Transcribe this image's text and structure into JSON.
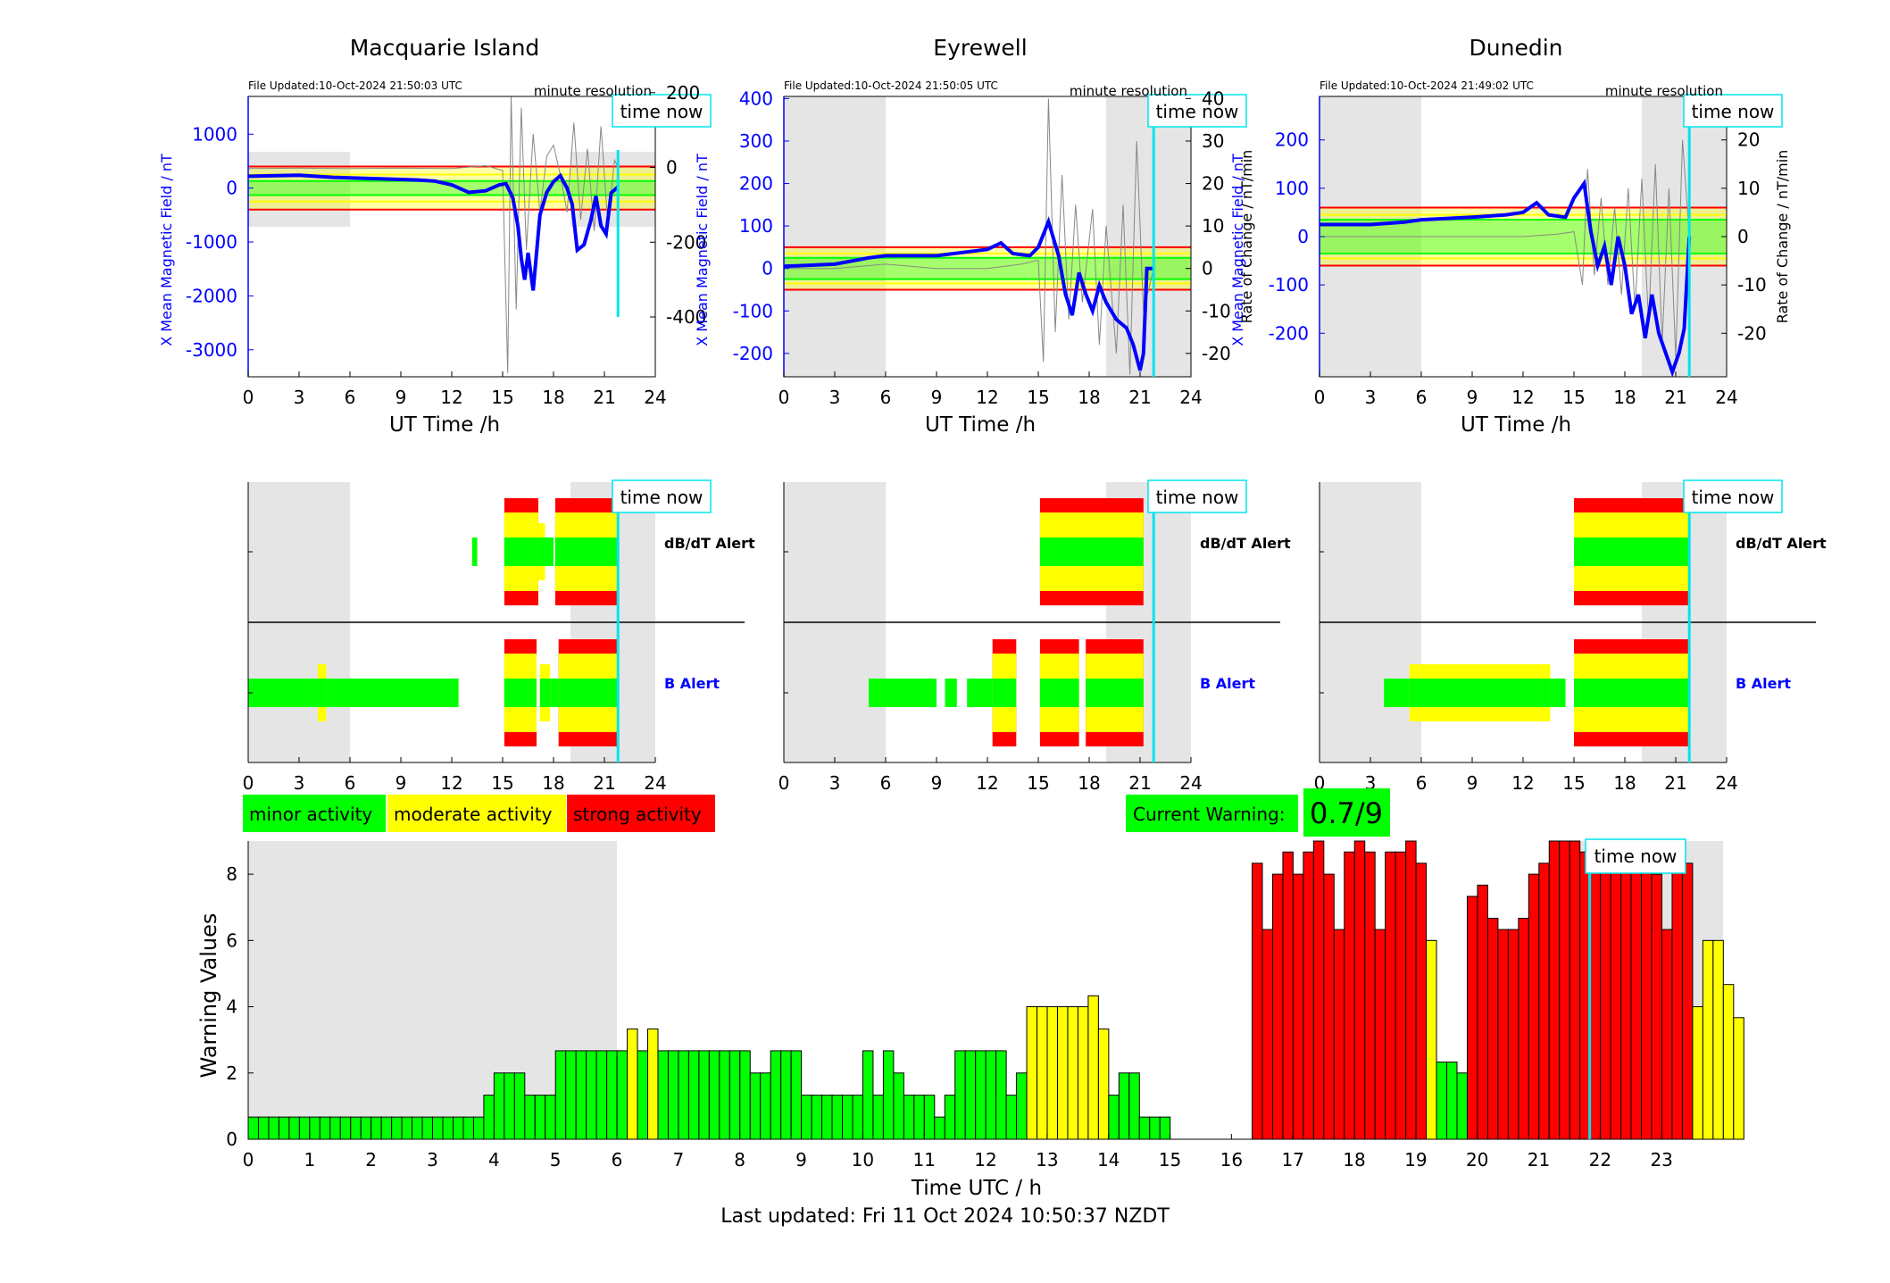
{
  "footer_text": "Last updated: Fri 11 Oct 2024 10:50:37 NZDT",
  "colors": {
    "minor": "#00ff00",
    "moderate": "#ffff00",
    "strong": "#ff0000",
    "field": "#0000ff",
    "time_now": "#00e5ee",
    "night": "#e5e5e5"
  },
  "legend": [
    {
      "label": "minor activity",
      "color": "#00ff00"
    },
    {
      "label": "moderate activity",
      "color": "#ffff00"
    },
    {
      "label": "strong activity",
      "color": "#ff0000"
    }
  ],
  "current_warning": {
    "label": "Current Warning:",
    "value": "0.7/9"
  },
  "time_now_label": "time now",
  "stations": [
    {
      "name": "Macquarie Island",
      "file_updated": "File Updated:10-Oct-2024 21:50:03 UTC",
      "resolution": "minute resolution",
      "ylabel_left": "X Mean Magnetic Field / nT",
      "ylabel_right": "",
      "ylim_left": [
        -3500,
        1700
      ],
      "yticks_left": [
        1000,
        0,
        -1000,
        -2000,
        -3000
      ],
      "ylim_right": [
        -560,
        190
      ],
      "yticks_right": [
        200,
        0,
        -200,
        -400
      ],
      "xlabel": "UT Time /h",
      "xticks": [
        0,
        3,
        6,
        9,
        12,
        15,
        18,
        21,
        24
      ],
      "thresholds": {
        "red": 400,
        "yellow": 250,
        "green": 130
      },
      "night_bands": [
        [
          0,
          6
        ],
        [
          19,
          24
        ]
      ],
      "time_now_h": 21.8,
      "field_trace": [
        [
          0,
          220
        ],
        [
          3,
          240
        ],
        [
          5,
          200
        ],
        [
          6,
          190
        ],
        [
          8,
          170
        ],
        [
          10,
          150
        ],
        [
          11,
          130
        ],
        [
          12,
          60
        ],
        [
          13,
          -80
        ],
        [
          14,
          -50
        ],
        [
          14.8,
          60
        ],
        [
          15.2,
          80
        ],
        [
          15.6,
          -180
        ],
        [
          15.9,
          -700
        ],
        [
          16.1,
          -1300
        ],
        [
          16.3,
          -1700
        ],
        [
          16.5,
          -1200
        ],
        [
          16.8,
          -1900
        ],
        [
          17.2,
          -500
        ],
        [
          17.6,
          -80
        ],
        [
          18,
          120
        ],
        [
          18.4,
          230
        ],
        [
          18.8,
          0
        ],
        [
          19.1,
          -300
        ],
        [
          19.4,
          -1150
        ],
        [
          19.8,
          -1050
        ],
        [
          20.2,
          -600
        ],
        [
          20.5,
          -150
        ],
        [
          20.8,
          -700
        ],
        [
          21.1,
          -850
        ],
        [
          21.4,
          -90
        ],
        [
          21.8,
          20
        ]
      ],
      "rate_trace": [
        [
          0,
          -3
        ],
        [
          3,
          -2
        ],
        [
          6,
          -3
        ],
        [
          9,
          -2
        ],
        [
          12,
          -3
        ],
        [
          14,
          5
        ],
        [
          15,
          -8
        ],
        [
          15.3,
          -550
        ],
        [
          15.5,
          190
        ],
        [
          15.8,
          -380
        ],
        [
          16.1,
          160
        ],
        [
          16.4,
          -220
        ],
        [
          16.8,
          90
        ],
        [
          17.2,
          -120
        ],
        [
          17.6,
          30
        ],
        [
          18,
          60
        ],
        [
          18.4,
          -20
        ],
        [
          18.8,
          -120
        ],
        [
          19.2,
          120
        ],
        [
          19.6,
          -140
        ],
        [
          20,
          50
        ],
        [
          20.4,
          -170
        ],
        [
          20.8,
          110
        ],
        [
          21.2,
          -150
        ],
        [
          21.6,
          20
        ],
        [
          21.8,
          0
        ]
      ],
      "db_alert": [
        [
          13.2,
          13.5,
          "minor"
        ],
        [
          15.1,
          17.1,
          "strong"
        ],
        [
          17.1,
          17.5,
          "moderate"
        ],
        [
          17.5,
          18.0,
          "minor"
        ],
        [
          18.1,
          21.8,
          "strong"
        ]
      ],
      "b_alert": [
        [
          0,
          12.0,
          "minor"
        ],
        [
          4.1,
          4.6,
          "moderate"
        ],
        [
          12.0,
          12.4,
          "minor"
        ],
        [
          15.1,
          17.0,
          "strong"
        ],
        [
          17.2,
          17.8,
          "moderate"
        ],
        [
          17.8,
          18.3,
          "minor"
        ],
        [
          18.3,
          21.8,
          "strong"
        ]
      ]
    },
    {
      "name": "Eyrewell",
      "file_updated": "File Updated:10-Oct-2024 21:50:05 UTC",
      "resolution": "minute resolution",
      "ylabel_left": "X Mean Magnetic Field / nT",
      "ylabel_right": "Rate of Change / nT/min",
      "ylim_left": [
        -255,
        405
      ],
      "yticks_left": [
        400,
        300,
        200,
        100,
        0,
        -100,
        -200
      ],
      "ylim_right": [
        -25.5,
        40.5
      ],
      "yticks_right": [
        40,
        30,
        20,
        10,
        0,
        -10,
        -20
      ],
      "xlabel": "UT Time /h",
      "xticks": [
        0,
        3,
        6,
        9,
        12,
        15,
        18,
        21,
        24
      ],
      "thresholds": {
        "red": 50,
        "yellow": 35,
        "green": 25
      },
      "night_bands": [
        [
          0,
          6
        ],
        [
          19,
          24
        ]
      ],
      "time_now_h": 21.8,
      "field_trace": [
        [
          0,
          5
        ],
        [
          3,
          10
        ],
        [
          5,
          25
        ],
        [
          6,
          30
        ],
        [
          9,
          30
        ],
        [
          11,
          40
        ],
        [
          12,
          45
        ],
        [
          12.8,
          60
        ],
        [
          13.5,
          35
        ],
        [
          14.5,
          30
        ],
        [
          15,
          50
        ],
        [
          15.6,
          110
        ],
        [
          16.2,
          30
        ],
        [
          16.6,
          -60
        ],
        [
          17,
          -110
        ],
        [
          17.4,
          -10
        ],
        [
          17.8,
          -60
        ],
        [
          18.2,
          -100
        ],
        [
          18.6,
          -40
        ],
        [
          19,
          -80
        ],
        [
          19.6,
          -120
        ],
        [
          20.2,
          -140
        ],
        [
          20.6,
          -180
        ],
        [
          21,
          -240
        ],
        [
          21.2,
          -200
        ],
        [
          21.4,
          0
        ],
        [
          21.8,
          0
        ]
      ],
      "rate_trace": [
        [
          0,
          0
        ],
        [
          3,
          0
        ],
        [
          6,
          1
        ],
        [
          9,
          0
        ],
        [
          12,
          0
        ],
        [
          14,
          1
        ],
        [
          15,
          2
        ],
        [
          15.3,
          -22
        ],
        [
          15.6,
          40
        ],
        [
          16,
          -15
        ],
        [
          16.4,
          22
        ],
        [
          16.8,
          -12
        ],
        [
          17.2,
          15
        ],
        [
          17.6,
          -8
        ],
        [
          18.2,
          14
        ],
        [
          18.6,
          -18
        ],
        [
          19,
          10
        ],
        [
          19.6,
          -20
        ],
        [
          20,
          15
        ],
        [
          20.4,
          -25
        ],
        [
          20.8,
          30
        ],
        [
          21.2,
          -10
        ],
        [
          21.8,
          0
        ]
      ],
      "db_alert": [
        [
          15.1,
          21.2,
          "strong"
        ]
      ],
      "b_alert": [
        [
          5,
          9,
          "minor"
        ],
        [
          9.5,
          10.2,
          "minor"
        ],
        [
          10.8,
          12.3,
          "minor"
        ],
        [
          12.3,
          13.7,
          "strong"
        ],
        [
          15.1,
          17.4,
          "strong"
        ],
        [
          17.8,
          21.2,
          "strong"
        ]
      ]
    },
    {
      "name": "Dunedin",
      "file_updated": "File Updated:10-Oct-2024 21:49:02 UTC",
      "resolution": "minute resolution",
      "ylabel_left": "X Mean Magnetic Field / nT",
      "ylabel_right": "Rate of Change / nT/min",
      "ylim_left": [
        -290,
        290
      ],
      "yticks_left": [
        200,
        100,
        0,
        -100,
        -200
      ],
      "ylim_right": [
        -29,
        29
      ],
      "yticks_right": [
        20,
        10,
        0,
        -10,
        -20
      ],
      "xlabel": "UT Time /h",
      "xticks": [
        0,
        3,
        6,
        9,
        12,
        15,
        18,
        21,
        24
      ],
      "thresholds": {
        "red": 60,
        "yellow": 45,
        "green": 35
      },
      "night_bands": [
        [
          0,
          6
        ],
        [
          19,
          24
        ]
      ],
      "time_now_h": 21.8,
      "field_trace": [
        [
          0,
          25
        ],
        [
          3,
          25
        ],
        [
          5,
          30
        ],
        [
          6,
          35
        ],
        [
          9,
          40
        ],
        [
          11,
          45
        ],
        [
          12,
          50
        ],
        [
          12.8,
          70
        ],
        [
          13.5,
          45
        ],
        [
          14.5,
          40
        ],
        [
          15,
          80
        ],
        [
          15.6,
          110
        ],
        [
          16,
          10
        ],
        [
          16.4,
          -60
        ],
        [
          16.8,
          -20
        ],
        [
          17.2,
          -100
        ],
        [
          17.6,
          0
        ],
        [
          18,
          -60
        ],
        [
          18.4,
          -160
        ],
        [
          18.8,
          -120
        ],
        [
          19.2,
          -210
        ],
        [
          19.6,
          -120
        ],
        [
          20,
          -200
        ],
        [
          20.4,
          -240
        ],
        [
          20.8,
          -280
        ],
        [
          21.2,
          -240
        ],
        [
          21.5,
          -190
        ],
        [
          21.8,
          0
        ]
      ],
      "rate_trace": [
        [
          0,
          0
        ],
        [
          3,
          0
        ],
        [
          6,
          0
        ],
        [
          9,
          0
        ],
        [
          12,
          0
        ],
        [
          14,
          0.5
        ],
        [
          15,
          1
        ],
        [
          15.5,
          -10
        ],
        [
          15.8,
          14
        ],
        [
          16.2,
          -8
        ],
        [
          16.6,
          8
        ],
        [
          17,
          -10
        ],
        [
          17.4,
          6
        ],
        [
          17.8,
          -12
        ],
        [
          18.2,
          10
        ],
        [
          18.6,
          -15
        ],
        [
          19,
          12
        ],
        [
          19.4,
          -18
        ],
        [
          19.8,
          15
        ],
        [
          20.2,
          -22
        ],
        [
          20.6,
          10
        ],
        [
          21,
          -25
        ],
        [
          21.4,
          20
        ],
        [
          21.8,
          0
        ]
      ],
      "db_alert": [
        [
          15.0,
          21.8,
          "strong"
        ]
      ],
      "b_alert": [
        [
          3.8,
          14.5,
          "minor"
        ],
        [
          5.3,
          13.6,
          "moderate"
        ],
        [
          15.0,
          21.8,
          "strong"
        ]
      ]
    }
  ],
  "b_alert_label": "B Alert",
  "db_alert_label": "dB/dT Alert",
  "chart_data": {
    "type": "bar",
    "title": "",
    "xlabel": "Time UTC / h",
    "ylabel": "Warning Values",
    "xlim": [
      0,
      24
    ],
    "ylim": [
      0,
      9
    ],
    "xticks": [
      0,
      1,
      2,
      3,
      4,
      5,
      6,
      7,
      8,
      9,
      10,
      11,
      12,
      13,
      14,
      15,
      16,
      17,
      18,
      19,
      20,
      21,
      22,
      23
    ],
    "yticks": [
      0,
      2,
      4,
      6,
      8
    ],
    "bar_width_h": 0.1667,
    "night_bands": [
      [
        0,
        6
      ],
      [
        21.5,
        24
      ]
    ],
    "time_now_h": 21.83,
    "values": [
      0.67,
      0.67,
      0.67,
      0.67,
      0.67,
      0.67,
      0.67,
      0.67,
      0.67,
      0.67,
      0.67,
      0.67,
      0.67,
      0.67,
      0.67,
      0.67,
      0.67,
      0.67,
      0.67,
      0.67,
      0.67,
      0.67,
      0.67,
      1.33,
      2,
      2,
      2,
      1.33,
      1.33,
      1.33,
      2.67,
      2.67,
      2.67,
      2.67,
      2.67,
      2.67,
      2.67,
      3.33,
      2.67,
      3.33,
      2.67,
      2.67,
      2.67,
      2.67,
      2.67,
      2.67,
      2.67,
      2.67,
      2.67,
      2,
      2,
      2.67,
      2.67,
      2.67,
      1.33,
      1.33,
      1.33,
      1.33,
      1.33,
      1.33,
      2.67,
      1.33,
      2.67,
      2,
      1.33,
      1.33,
      1.33,
      0.67,
      1.33,
      2.67,
      2.67,
      2.67,
      2.67,
      2.67,
      1.33,
      2,
      4,
      4,
      4,
      4,
      4,
      4,
      4.33,
      3.33,
      1.33,
      2,
      2,
      0.67,
      0.67,
      0.67,
      0,
      0,
      0,
      0,
      0,
      0,
      0,
      0,
      8.33,
      6.33,
      8,
      8.67,
      8,
      8.67,
      9,
      8,
      6.33,
      8.67,
      9,
      8.67,
      6.33,
      8.67,
      8.67,
      9,
      8.33,
      6,
      2.33,
      2.33,
      2,
      7.33,
      7.67,
      6.67,
      6.33,
      6.33,
      6.67,
      8,
      8.33,
      9,
      9,
      9,
      8.67,
      9,
      9,
      8.67,
      9,
      9,
      9,
      8,
      6.33,
      8.33,
      8.33,
      4,
      6,
      6,
      4.67,
      3.67
    ],
    "levels": [
      "minor",
      "minor",
      "minor",
      "minor",
      "minor",
      "minor",
      "minor",
      "minor",
      "minor",
      "minor",
      "minor",
      "minor",
      "minor",
      "minor",
      "minor",
      "minor",
      "minor",
      "minor",
      "minor",
      "minor",
      "minor",
      "minor",
      "minor",
      "minor",
      "minor",
      "minor",
      "minor",
      "minor",
      "minor",
      "minor",
      "minor",
      "minor",
      "minor",
      "minor",
      "minor",
      "minor",
      "minor",
      "moderate",
      "minor",
      "moderate",
      "minor",
      "minor",
      "minor",
      "minor",
      "minor",
      "minor",
      "minor",
      "minor",
      "minor",
      "minor",
      "minor",
      "minor",
      "minor",
      "minor",
      "minor",
      "minor",
      "minor",
      "minor",
      "minor",
      "minor",
      "minor",
      "minor",
      "minor",
      "minor",
      "minor",
      "minor",
      "minor",
      "minor",
      "minor",
      "minor",
      "minor",
      "minor",
      "minor",
      "minor",
      "minor",
      "minor",
      "moderate",
      "moderate",
      "moderate",
      "moderate",
      "moderate",
      "moderate",
      "moderate",
      "moderate",
      "minor",
      "minor",
      "minor",
      "minor",
      "minor",
      "minor",
      "minor",
      "minor",
      "minor",
      "minor",
      "minor",
      "minor",
      "minor",
      "minor",
      "strong",
      "strong",
      "strong",
      "strong",
      "strong",
      "strong",
      "strong",
      "strong",
      "strong",
      "strong",
      "strong",
      "strong",
      "strong",
      "strong",
      "strong",
      "strong",
      "strong",
      "moderate",
      "minor",
      "minor",
      "minor",
      "strong",
      "strong",
      "strong",
      "strong",
      "strong",
      "strong",
      "strong",
      "strong",
      "strong",
      "strong",
      "strong",
      "strong",
      "strong",
      "strong",
      "strong",
      "strong",
      "strong",
      "strong",
      "strong",
      "strong",
      "strong",
      "strong",
      "moderate",
      "moderate",
      "moderate",
      "moderate",
      "moderate"
    ]
  }
}
